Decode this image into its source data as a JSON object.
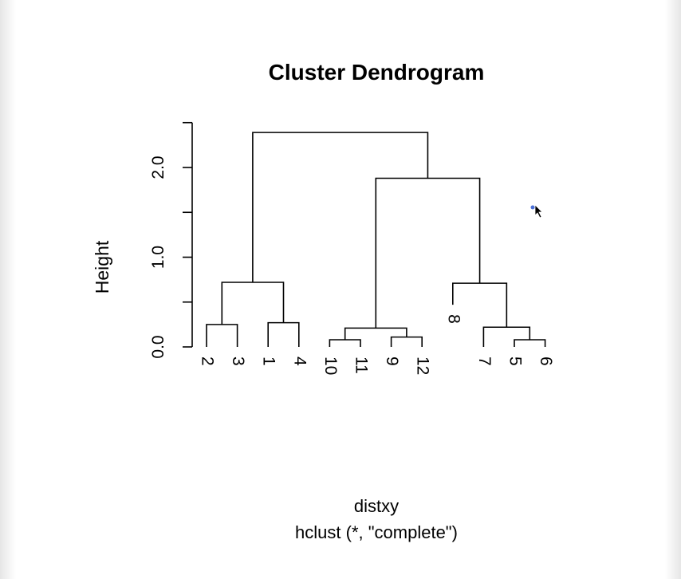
{
  "chart_data": {
    "type": "dendrogram",
    "title": "Cluster Dendrogram",
    "ylabel": "Height",
    "xlabel": "distxy",
    "subtitle": "hclust (*, \"complete\")",
    "ylim": [
      0,
      2.5
    ],
    "yticks": [
      0,
      0.5,
      1,
      1.5,
      2,
      2.5
    ],
    "ytick_labels": [
      "0.0",
      "",
      "1.0",
      "",
      "2.0",
      ""
    ],
    "leaves": [
      "2",
      "3",
      "1",
      "4",
      "10",
      "11",
      "9",
      "12",
      "8",
      "7",
      "5",
      "6"
    ],
    "merges": [
      {
        "id": "c23",
        "left": "2",
        "right": "3",
        "height": 0.25
      },
      {
        "id": "c14",
        "left": "1",
        "right": "4",
        "height": 0.27
      },
      {
        "id": "c1011",
        "left": "10",
        "right": "11",
        "height": 0.08
      },
      {
        "id": "c912",
        "left": "9",
        "right": "12",
        "height": 0.11
      },
      {
        "id": "c56",
        "left": "5",
        "right": "6",
        "height": 0.08
      },
      {
        "id": "c7_56",
        "left": "7",
        "right": "c56",
        "height": 0.22
      },
      {
        "id": "c1234",
        "left": "c23",
        "right": "c14",
        "height": 0.72
      },
      {
        "id": "c9to12",
        "left": "c1011",
        "right": "c912",
        "height": 0.21
      },
      {
        "id": "c8to6",
        "left": "8",
        "right": "c7_56",
        "height": 0.71
      },
      {
        "id": "c9to6",
        "left": "c9to12",
        "right": "c8to6",
        "height": 1.88
      },
      {
        "id": "root",
        "left": "c1234",
        "right": "c9to6",
        "height": 2.39
      }
    ],
    "leaf_heights": {
      "2": 0,
      "3": 0,
      "1": 0,
      "4": 0,
      "10": 0,
      "11": 0,
      "9": 0,
      "12": 0,
      "8": 0.47,
      "7": 0,
      "5": 0,
      "6": 0
    },
    "colors": {
      "ink": "#000000",
      "background": "#ffffff",
      "cursor_dot": "#4a6fd6"
    }
  }
}
